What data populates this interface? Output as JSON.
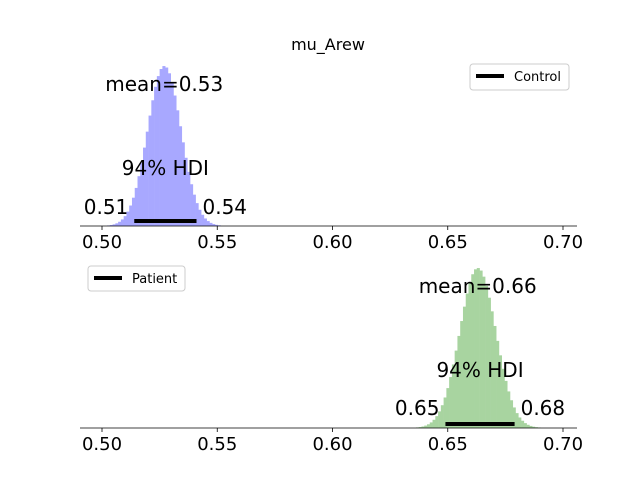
{
  "chart_data": {
    "type": "histogram",
    "title": "mu_Arew",
    "xlim": [
      0.49,
      0.705
    ],
    "xticks": [
      0.5,
      0.55,
      0.6,
      0.65,
      0.7
    ],
    "xtick_labels": [
      "0.50",
      "0.55",
      "0.60",
      "0.65",
      "0.70"
    ],
    "grid": false,
    "panels": [
      {
        "name": "Control",
        "legend_label": "Control",
        "legend_position": "top-right",
        "color": "#a8a8ff",
        "mean": 0.527,
        "mean_label": "mean=0.53",
        "hdi_label": "94% HDI",
        "hdi_low": 0.514,
        "hdi_high": 0.541,
        "hdi_low_label": "0.51",
        "hdi_high_label": "0.54",
        "sd": 0.0072,
        "bin_width": 0.0012,
        "bin_range": [
          0.498,
          0.558
        ]
      },
      {
        "name": "Patient",
        "legend_label": "Patient",
        "legend_position": "top-left",
        "color": "#a8d4a0",
        "mean": 0.663,
        "mean_label": "mean=0.66",
        "hdi_label": "94% HDI",
        "hdi_low": 0.649,
        "hdi_high": 0.679,
        "hdi_low_label": "0.65",
        "hdi_high_label": "0.68",
        "sd": 0.0078,
        "bin_width": 0.0012,
        "bin_range": [
          0.632,
          0.695
        ]
      }
    ]
  }
}
